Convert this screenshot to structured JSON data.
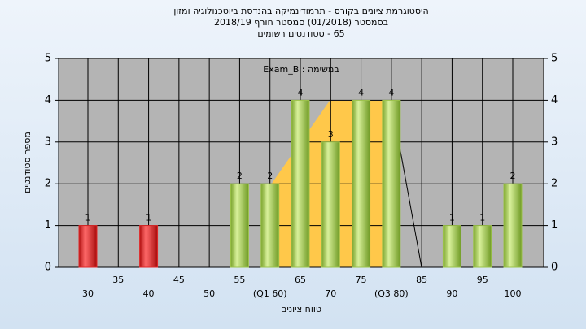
{
  "chart_data": {
    "type": "bar",
    "title": "היסטוגרמת ציונים בקורס - תרמודינמיקה בהנדסת ביוטכנולוגיה ומזון",
    "subtitle": "בסמסטר  (01/2018)  סמסטר חורף 2018/19",
    "subtitle2": "65 - סטודנטים רשומים",
    "annotation": "במשימה : Exam_B",
    "y_label": "מספר סטודנטים",
    "x_label": "טווח ציונים",
    "categories": [
      "30",
      "35",
      "40",
      "45",
      "50",
      "55",
      "(Q1 60)",
      "65",
      "70",
      "75",
      "(Q3 80)",
      "85",
      "90",
      "95",
      "100"
    ],
    "values": [
      1,
      0,
      1,
      0,
      0,
      2,
      2,
      4,
      3,
      4,
      4,
      0,
      1,
      1,
      2
    ],
    "colors": [
      "#e02828",
      "#9bc24a",
      "#e02828",
      "#9bc24a",
      "#9bc24a",
      "#9bc24a",
      "#9bc24a",
      "#9bc24a",
      "#9bc24a",
      "#9bc24a",
      "#9bc24a",
      "#9bc24a",
      "#9bc24a",
      "#9bc24a",
      "#9bc24a"
    ],
    "ylim": [
      0,
      5
    ],
    "yticks": [
      0,
      1,
      2,
      3,
      4,
      5
    ],
    "grid": true
  }
}
